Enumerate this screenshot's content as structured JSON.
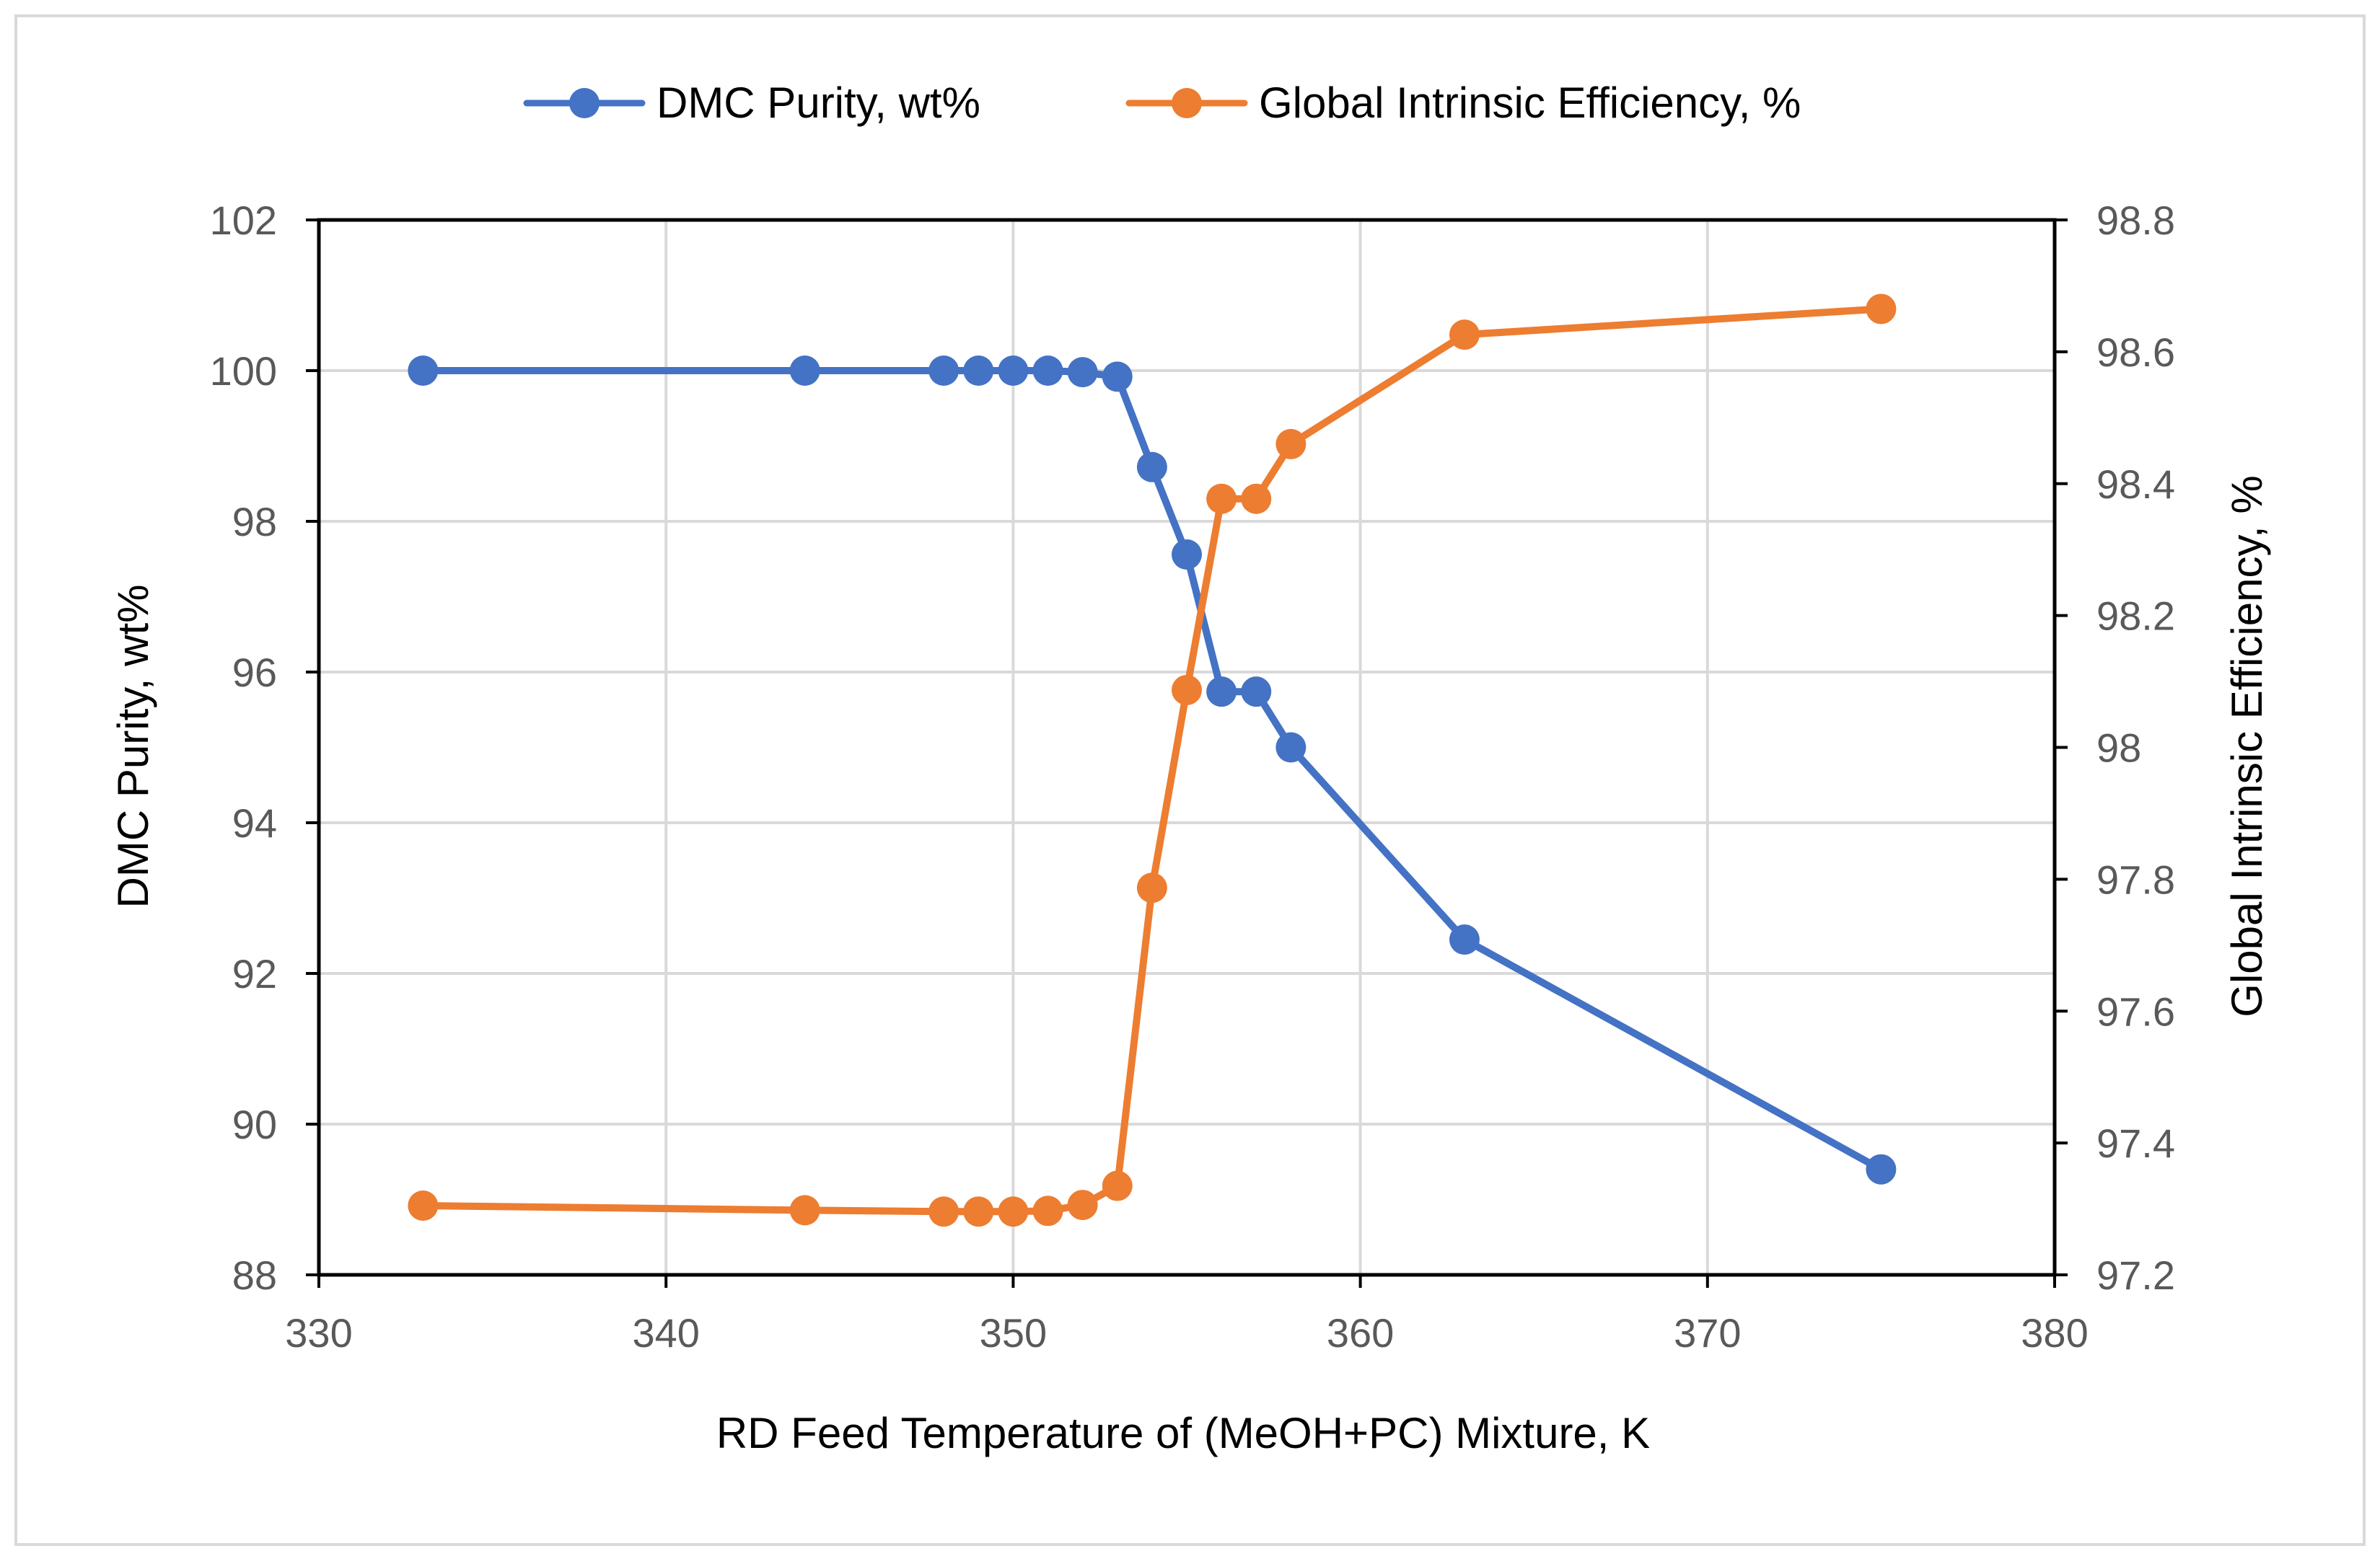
{
  "chart_data": {
    "type": "line",
    "title": "",
    "xlabel": "RD Feed Temperature of (MeOH+PC) Mixture, K",
    "ylabel": "DMC Purity, wt%",
    "y2label": "Global Intrinsic Efficiency, %",
    "xlim": [
      330,
      380
    ],
    "ylim": [
      88,
      102
    ],
    "y2lim": [
      97.2,
      98.8
    ],
    "xticks": [
      330,
      340,
      350,
      360,
      370,
      380
    ],
    "xtick_labels": [
      "330",
      "340",
      "350",
      "360",
      "370",
      "380"
    ],
    "yticks": [
      88,
      90,
      92,
      94,
      96,
      98,
      100,
      102
    ],
    "ytick_labels": [
      "88",
      "90",
      "92",
      "94",
      "96",
      "98",
      "100",
      "102"
    ],
    "y2ticks": [
      97.2,
      97.4,
      97.6,
      97.8,
      98.0,
      98.2,
      98.4,
      98.6,
      98.8
    ],
    "y2tick_labels": [
      "97.2",
      "97.4",
      "97.6",
      "97.8",
      "98",
      "98.2",
      "98.4",
      "98.6",
      "98.8"
    ],
    "grid": true,
    "legend_position": "top-center",
    "series": [
      {
        "name": "DMC Purity, wt%",
        "axis": "left",
        "color": "#4472C4",
        "x": [
          333,
          344,
          348,
          349,
          350,
          351,
          352,
          353,
          354,
          355,
          356,
          357,
          358,
          363,
          375
        ],
        "y": [
          100,
          100,
          100,
          100,
          100,
          100,
          99.98,
          99.92,
          98.72,
          97.56,
          95.74,
          95.74,
          95.0,
          92.45,
          89.4
        ]
      },
      {
        "name": "Global Intrinsic Efficiency, %",
        "axis": "right",
        "color": "#ED7D31",
        "x": [
          333,
          344,
          348,
          349,
          350,
          351,
          352,
          353,
          354,
          355,
          356,
          357,
          358,
          363,
          375
        ],
        "y": [
          97.305,
          97.298,
          97.296,
          97.296,
          97.296,
          97.297,
          97.306,
          97.335,
          97.787,
          98.087,
          98.377,
          98.377,
          98.46,
          98.626,
          98.665
        ]
      }
    ]
  }
}
